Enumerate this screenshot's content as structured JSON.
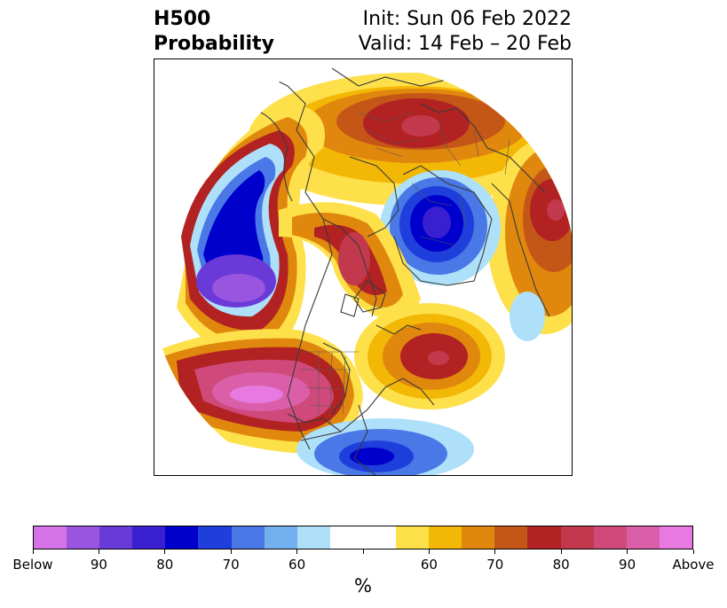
{
  "title": {
    "left_line1": "H500",
    "left_line2": "Probability",
    "right_line1": "Init: Sun 06 Feb 2022",
    "right_line2": "Valid: 14 Feb – 20 Feb"
  },
  "colorbar": {
    "units": "%",
    "colors": [
      "#d373e6",
      "#9955e0",
      "#6a3ad8",
      "#3a1fd0",
      "#0000cc",
      "#1f3fdc",
      "#4a78e6",
      "#74b0f0",
      "#aee0fa",
      "#ffffff",
      "#ffffff",
      "#fee04b",
      "#f3b705",
      "#e0870d",
      "#c45717",
      "#b22222",
      "#c2394d",
      "#cf4a7a",
      "#db5fa8",
      "#e879e0"
    ],
    "tick_labels": [
      "Below",
      "90",
      "80",
      "70",
      "60",
      "",
      "60",
      "70",
      "80",
      "90",
      "Above"
    ]
  },
  "map": {
    "projection": "north-polar-stereographic",
    "field": "H500 probability anomaly"
  }
}
